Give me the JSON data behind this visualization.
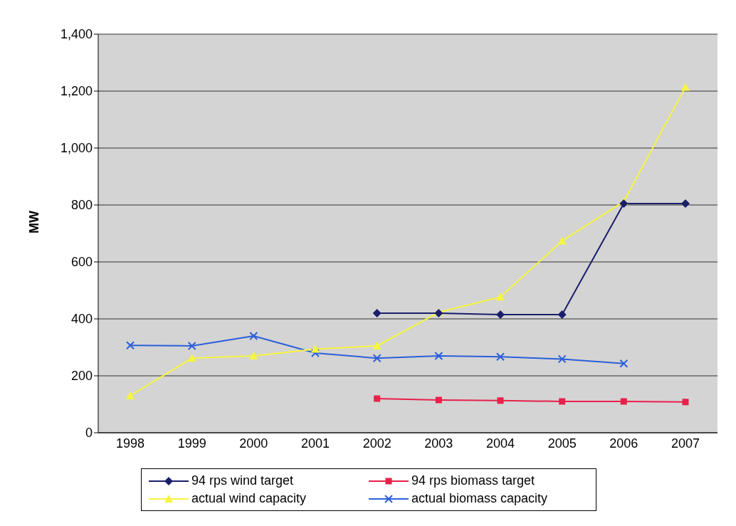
{
  "chart_data": {
    "type": "line",
    "ylabel": "MW",
    "categories": [
      "1998",
      "1999",
      "2000",
      "2001",
      "2002",
      "2003",
      "2004",
      "2005",
      "2006",
      "2007"
    ],
    "series": [
      {
        "name": "94 rps wind target",
        "color": "#1a1f6b",
        "marker": "diamond",
        "values": [
          null,
          null,
          null,
          null,
          420,
          420,
          415,
          415,
          805,
          805
        ]
      },
      {
        "name": "94 rps biomass target",
        "color": "#e8204a",
        "marker": "square",
        "values": [
          null,
          null,
          null,
          null,
          120,
          115,
          113,
          110,
          110,
          108
        ]
      },
      {
        "name": "actual wind capacity",
        "color": "#f5f542",
        "marker": "triangle",
        "values": [
          130,
          262,
          270,
          294,
          305,
          423,
          477,
          674,
          812,
          1214
        ]
      },
      {
        "name": "actual biomass capacity",
        "color": "#2b5fd9",
        "marker": "cross",
        "values": [
          307,
          305,
          340,
          280,
          262,
          270,
          267,
          259,
          243,
          null
        ]
      }
    ],
    "ylim": [
      0,
      1400
    ],
    "yticks": [
      0,
      200,
      400,
      600,
      800,
      {
        "value": 1000,
        "label": "1,000"
      },
      {
        "value": 1200,
        "label": "1,200"
      },
      {
        "value": 1400,
        "label": "1,400"
      }
    ],
    "grid": "y",
    "legend": "bottom"
  }
}
